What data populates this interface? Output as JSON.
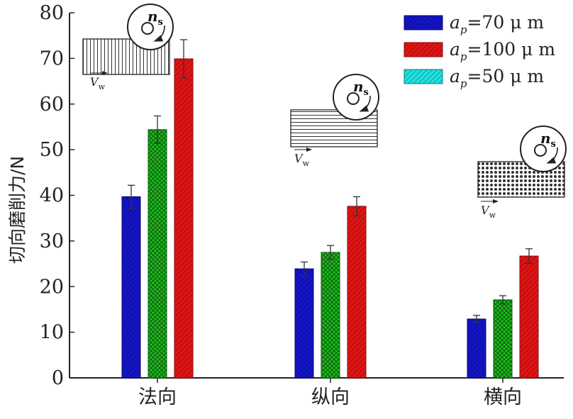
{
  "chart_data": {
    "type": "bar",
    "ylabel": "切向磨削力/N",
    "xlabel": "",
    "ylim": [
      0,
      80
    ],
    "yticks": [
      0,
      10,
      20,
      30,
      40,
      50,
      60,
      70,
      80
    ],
    "categories": [
      "法向",
      "纵向",
      "横向"
    ],
    "legend_position": "top-right",
    "grid": false,
    "series": [
      {
        "name_prefix": "a",
        "name_sub": "p",
        "name_suffix": "=70 μ m",
        "color": "#1414c8",
        "pattern": "diagonal-hatch",
        "values": [
          39.7,
          23.9,
          12.9
        ],
        "errors": [
          2.5,
          1.5,
          0.8
        ]
      },
      {
        "name_prefix": "a",
        "name_sub": "p",
        "name_suffix": "=100 μ m",
        "color": "#e01414",
        "pattern": "diagonal-hatch",
        "values": [
          69.9,
          37.6,
          26.7
        ],
        "errors": [
          4.2,
          2.1,
          1.6
        ]
      },
      {
        "name_prefix": "a",
        "name_sub": "p",
        "name_suffix": "=50 μ m",
        "color": "#1ec01e",
        "legend_color": "#22e0e0",
        "pattern": "cross-hatch",
        "values": [
          54.4,
          27.5,
          17.1
        ],
        "errors": [
          3.0,
          1.5,
          0.9
        ]
      }
    ],
    "bar_order": [
      0,
      2,
      1
    ],
    "insets": [
      {
        "id": "normal",
        "pattern": "vertical-lines",
        "vw_label": "V",
        "vw_sub": "w",
        "ns_label": "n",
        "ns_sub": "s"
      },
      {
        "id": "longitudinal",
        "pattern": "horizontal-lines",
        "vw_label": "V",
        "vw_sub": "w",
        "ns_label": "n",
        "ns_sub": "s"
      },
      {
        "id": "transverse",
        "pattern": "dots",
        "vw_label": "V",
        "vw_sub": "w",
        "ns_label": "n",
        "ns_sub": "s"
      }
    ]
  }
}
